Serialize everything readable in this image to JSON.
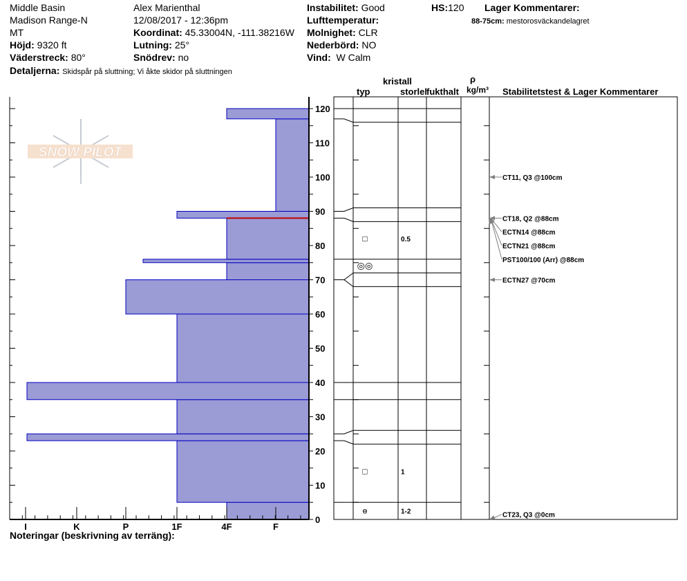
{
  "header": {
    "location": "Middle Basin",
    "range": "Madison Range-N",
    "state": "MT",
    "elevation_label": "Höjd:",
    "elevation": "9320 ft",
    "aspect_label": "Väderstreck:",
    "aspect": "80°",
    "details_label": "Detaljerna:",
    "details": "Skidspår på sluttning;  Vi åkte skidor på sluttningen",
    "observer": "Alex Marienthal",
    "datetime": "12/08/2017 - 12:36pm",
    "coord_label": "Koordinat:",
    "coord": "45.33004N, -111.38216W",
    "slope_label": "Lutning:",
    "slope": "25°",
    "drift_label": "Snödrev:",
    "drift": "no",
    "instability_label": "Instabilitet:",
    "instability": "Good",
    "airtemp_label": "Lufttemperatur:",
    "sky_label": "Molnighet:",
    "sky": "CLR",
    "precip_label": "Nederbörd:",
    "precip": "NO",
    "wind_label": "Vind:",
    "wind": "W Calm",
    "hs_label": "HS:",
    "hs": "120",
    "layer_comments_title": "Lager Kommentarer:",
    "layer_comment_range": "88-75cm:",
    "layer_comment": "mestorosväckandelagret",
    "notes_label": "Noteringar (beskrivning av terräng):"
  },
  "logo": {
    "text": "SNOW PILOT"
  },
  "table_headers": {
    "crystal": "kristall",
    "type": "typ",
    "size": "storlek",
    "moisture": "fukthalt",
    "rho": "ρ",
    "density_unit": "kg/m³",
    "stability": "Stabilitetstest & Lager Kommentarer"
  },
  "colors": {
    "layer_fill": "#9b9bd6",
    "layer_edge": "#0000c0",
    "critical_layer": "#c00000",
    "arrow": "#808080"
  },
  "chart_data": {
    "type": "bar",
    "depth_axis": {
      "ticks": [
        0,
        10,
        20,
        30,
        40,
        50,
        60,
        70,
        80,
        90,
        100,
        110,
        120
      ],
      "range": [
        0,
        123
      ]
    },
    "hardness_axis": {
      "labels": [
        "I",
        "K",
        "P",
        "1F",
        "4F",
        "F"
      ]
    },
    "hardness_layers": [
      {
        "bottom": 0,
        "top": 5,
        "hardness": "4F"
      },
      {
        "bottom": 5,
        "top": 23,
        "hardness": "1F"
      },
      {
        "bottom": 23,
        "top": 25,
        "hardness": "I"
      },
      {
        "bottom": 25,
        "top": 35,
        "hardness": "1F"
      },
      {
        "bottom": 35,
        "top": 40,
        "hardness": "I"
      },
      {
        "bottom": 40,
        "top": 60,
        "hardness": "1F"
      },
      {
        "bottom": 60,
        "top": 70,
        "hardness": "P"
      },
      {
        "bottom": 70,
        "top": 75,
        "hardness": "4F"
      },
      {
        "bottom": 75,
        "top": 76,
        "hardness": "P+"
      },
      {
        "bottom": 76,
        "top": 88,
        "hardness": "4F"
      },
      {
        "bottom": 88,
        "top": 90,
        "hardness": "1F"
      },
      {
        "bottom": 90,
        "top": 117,
        "hardness": "F"
      },
      {
        "bottom": 117,
        "top": 120,
        "hardness": "4F"
      }
    ],
    "critical_layer_depth": 88
  },
  "layer_boundaries": [
    120,
    116,
    91,
    87,
    76,
    72,
    68,
    40,
    35,
    26,
    22,
    5
  ],
  "crystals": [
    {
      "depth": 82,
      "symbol": "□",
      "size": "0.5"
    },
    {
      "depth": 74,
      "symbol": "◎◎",
      "size": ""
    },
    {
      "depth": 14,
      "symbol": "□",
      "size": "1"
    },
    {
      "depth": 2.5,
      "symbol": "ɵ",
      "size": "1-2"
    }
  ],
  "tests": [
    {
      "depth": 100,
      "label": "CT11, Q3 @100cm",
      "label_depth": 100
    },
    {
      "depth": 88,
      "label": "CT18, Q2 @88cm",
      "label_depth": 88
    },
    {
      "depth": 88,
      "label": "ECTN14 @88cm",
      "label_depth": 84
    },
    {
      "depth": 88,
      "label": "ECTN21 @88cm",
      "label_depth": 80
    },
    {
      "depth": 88,
      "label": "PST100/100 (Arr) @88cm",
      "label_depth": 76
    },
    {
      "depth": 70,
      "label": "ECTN27 @70cm",
      "label_depth": 70
    },
    {
      "depth": 0,
      "label": "CT23, Q3 @0cm",
      "label_depth": 1.5
    }
  ]
}
